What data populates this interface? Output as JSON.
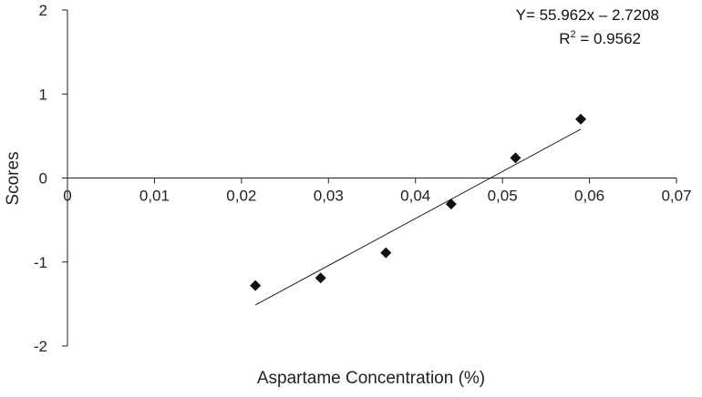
{
  "chart_data": {
    "type": "scatter",
    "xlabel": "Aspartame Concentration (%)",
    "ylabel": "Scores",
    "xlim": [
      0,
      0.07
    ],
    "ylim": [
      -2,
      2
    ],
    "x_ticks": [
      0,
      0.01,
      0.02,
      0.03,
      0.04,
      0.05,
      0.06,
      0.07
    ],
    "x_tick_labels": [
      "0",
      "0,01",
      "0,02",
      "0,03",
      "0,04",
      "0,05",
      "0,06",
      "0,07"
    ],
    "y_ticks": [
      -2,
      -1,
      0,
      1,
      2
    ],
    "y_tick_labels": [
      "-2",
      "-1",
      "0",
      "1",
      "2"
    ],
    "grid": false,
    "series": [
      {
        "marker": "diamond",
        "color": "#111111",
        "x": [
          0.0216,
          0.0291,
          0.0366,
          0.0441,
          0.0515,
          0.059
        ],
        "y": [
          -1.28,
          -1.19,
          -0.89,
          -0.31,
          0.24,
          0.7
        ]
      }
    ],
    "trendline": {
      "slope": 55.962,
      "intercept": -2.7208,
      "x_range": [
        0.0216,
        0.059
      ],
      "equation_label": "Y= 55.962x – 2.7208",
      "r2_prefix": "R",
      "r2_sup": "2",
      "r2_value": " = 0.9562"
    }
  }
}
